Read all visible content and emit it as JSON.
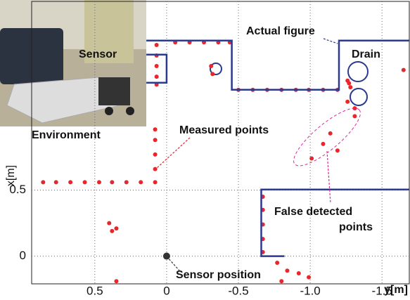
{
  "chart_data": {
    "type": "scatter",
    "xlabel": "y[m]",
    "ylabel": "x[m]",
    "xlim": [
      0.94,
      -1.69
    ],
    "ylim": [
      -0.21,
      1.93
    ],
    "xticks": [
      0.5,
      0,
      -0.5,
      {
        "value": -1,
        "label": "-1.0"
      },
      -1.5
    ],
    "yticks": [
      0,
      0.5
    ],
    "grid": true,
    "series": [
      {
        "name": "Measured points",
        "color": "#e8262c",
        "x": [
          0.86,
          0.77,
          0.67,
          0.57,
          0.47,
          0.38,
          0.28,
          0.18,
          0.08,
          0.08,
          0.08,
          0.08,
          0.08,
          0.07,
          0.07,
          0.07,
          0.07,
          0.07,
          -0.06,
          -0.16,
          -0.26,
          -0.36,
          -0.44,
          -0.31,
          -0.32,
          -0.5,
          -0.6,
          -0.7,
          -0.8,
          -0.9,
          -0.99,
          -1.09,
          -1.19,
          -1.26,
          -1.28,
          -1.26,
          -1.31,
          -1.27,
          -1.31,
          -1.14,
          -1.09,
          -1.01,
          -1.19,
          -1.65,
          -0.67,
          -0.67,
          -0.67,
          -0.67,
          -0.67,
          -0.77,
          -0.84,
          -0.92,
          -0.99,
          -0.8,
          0.35,
          0.38,
          0.4,
          0.35
        ],
        "y": [
          0.56,
          0.56,
          0.56,
          0.56,
          0.56,
          0.56,
          0.56,
          0.56,
          0.56,
          0.66,
          0.77,
          0.88,
          0.96,
          1.6,
          1.52,
          1.44,
          1.36,
          1.3,
          1.62,
          1.62,
          1.62,
          1.62,
          1.62,
          1.44,
          1.38,
          1.26,
          1.26,
          1.26,
          1.26,
          1.26,
          1.26,
          1.26,
          1.26,
          1.33,
          1.28,
          1.17,
          1.12,
          1.31,
          1.06,
          0.93,
          0.85,
          0.74,
          0.8,
          1.41,
          0.45,
          0.35,
          0.24,
          0.13,
          0.03,
          -0.05,
          -0.11,
          -0.13,
          -0.16,
          -0.19,
          0.21,
          0.19,
          0.25,
          -0.19
        ]
      },
      {
        "name": "Actual figure",
        "color": "#2b3990",
        "line": true,
        "x": [
          0.141,
          -0.454,
          -0.454,
          -1.2,
          -1.2,
          -1.688,
          null,
          0.141,
          0,
          0,
          0.141,
          null,
          -1.688,
          -0.659,
          -0.659,
          -0.82
        ],
        "y": [
          1.633,
          1.633,
          1.261,
          1.261,
          1.633,
          1.633,
          null,
          1.527,
          1.527,
          1.314,
          1.314,
          null,
          0.505,
          0.505,
          0,
          0
        ]
      },
      {
        "name": "Sensor position",
        "color": "#333333",
        "x": [
          0
        ],
        "y": [
          0
        ]
      }
    ],
    "annotations": [
      "Drain",
      "False detected",
      "points",
      "Environment",
      "Sensor"
    ]
  }
}
